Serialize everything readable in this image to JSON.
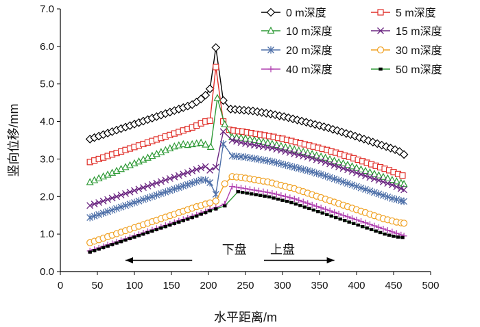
{
  "chart_data": {
    "type": "line",
    "xlabel": "水平距离/m",
    "ylabel": "竖向位移/mm",
    "xlim": [
      0,
      500
    ],
    "ylim": [
      0.0,
      7.0
    ],
    "xticks": [
      0,
      50,
      100,
      150,
      200,
      250,
      300,
      350,
      400,
      450,
      500
    ],
    "xtick_labels": [
      "0",
      "50",
      "100",
      "150",
      "200",
      "250",
      "300",
      "350",
      "400",
      "450",
      "500"
    ],
    "yticks": [
      0,
      1,
      2,
      3,
      4,
      5,
      6,
      7
    ],
    "ytick_labels": [
      "0.0",
      "1.0",
      "2.0",
      "3.0",
      "4.0",
      "5.0",
      "6.0",
      "7.0"
    ],
    "grid": false,
    "legend_position": "top-right",
    "annotations": [
      {
        "text": "下盘",
        "direction": "left",
        "x_from": 178,
        "x_to": 88,
        "y": 0.3,
        "text_x": 235,
        "text_y": 0.58
      },
      {
        "text": "上盘",
        "direction": "right",
        "x_from": 275,
        "x_to": 370,
        "y": 0.3,
        "text_x": 300,
        "text_y": 0.58
      }
    ],
    "series": [
      {
        "name": "0 m深度",
        "color": "#000000",
        "marker": "diamond",
        "x": [
          40,
          46,
          52,
          58,
          64,
          70,
          76,
          82,
          88,
          94,
          100,
          106,
          112,
          118,
          124,
          130,
          136,
          142,
          148,
          154,
          160,
          166,
          172,
          178,
          184,
          190,
          196,
          202,
          210,
          220,
          230,
          236,
          242,
          248,
          254,
          260,
          266,
          272,
          278,
          284,
          290,
          296,
          302,
          308,
          314,
          320,
          326,
          332,
          338,
          344,
          350,
          356,
          362,
          368,
          374,
          380,
          386,
          392,
          398,
          404,
          410,
          416,
          422,
          428,
          434,
          440,
          446,
          452,
          458,
          464
        ],
        "y": [
          3.53,
          3.57,
          3.61,
          3.65,
          3.69,
          3.73,
          3.77,
          3.81,
          3.85,
          3.89,
          3.93,
          3.97,
          4.01,
          4.05,
          4.09,
          4.13,
          4.17,
          4.21,
          4.25,
          4.29,
          4.33,
          4.37,
          4.41,
          4.45,
          4.52,
          4.6,
          4.7,
          4.87,
          5.97,
          4.56,
          4.33,
          4.32,
          4.31,
          4.3,
          4.29,
          4.28,
          4.26,
          4.24,
          4.22,
          4.2,
          4.18,
          4.15,
          4.13,
          4.1,
          4.07,
          4.04,
          4.01,
          3.98,
          3.95,
          3.92,
          3.89,
          3.86,
          3.83,
          3.79,
          3.76,
          3.72,
          3.68,
          3.65,
          3.61,
          3.57,
          3.53,
          3.49,
          3.45,
          3.41,
          3.37,
          3.33,
          3.29,
          3.25,
          3.2,
          3.12
        ]
      },
      {
        "name": "5 m深度",
        "color": "#e0302a",
        "marker": "square",
        "x": [
          40,
          46,
          52,
          58,
          64,
          70,
          76,
          82,
          88,
          94,
          100,
          106,
          112,
          118,
          124,
          130,
          136,
          142,
          148,
          154,
          160,
          166,
          172,
          178,
          184,
          190,
          196,
          202,
          210,
          220,
          228,
          234,
          240,
          246,
          252,
          258,
          264,
          270,
          276,
          282,
          288,
          294,
          300,
          306,
          312,
          318,
          324,
          330,
          336,
          342,
          348,
          354,
          360,
          366,
          372,
          378,
          384,
          390,
          396,
          402,
          408,
          414,
          420,
          426,
          432,
          438,
          444,
          450,
          456,
          462
        ],
        "y": [
          2.92,
          2.96,
          3.0,
          3.04,
          3.08,
          3.12,
          3.16,
          3.2,
          3.24,
          3.28,
          3.32,
          3.36,
          3.4,
          3.44,
          3.48,
          3.52,
          3.56,
          3.6,
          3.64,
          3.68,
          3.72,
          3.76,
          3.8,
          3.84,
          3.89,
          3.95,
          4.0,
          4.02,
          5.45,
          4.0,
          3.78,
          3.76,
          3.74,
          3.73,
          3.71,
          3.69,
          3.67,
          3.65,
          3.63,
          3.61,
          3.59,
          3.56,
          3.54,
          3.51,
          3.48,
          3.45,
          3.42,
          3.39,
          3.36,
          3.33,
          3.3,
          3.27,
          3.24,
          3.2,
          3.17,
          3.13,
          3.09,
          3.06,
          3.02,
          2.98,
          2.94,
          2.9,
          2.86,
          2.82,
          2.78,
          2.74,
          2.7,
          2.65,
          2.6,
          2.56
        ]
      },
      {
        "name": "10 m深度",
        "color": "#2e9a36",
        "marker": "triangle",
        "x": [
          40,
          46,
          52,
          58,
          64,
          70,
          76,
          82,
          88,
          94,
          100,
          106,
          112,
          118,
          124,
          130,
          136,
          142,
          148,
          154,
          160,
          166,
          172,
          178,
          184,
          190,
          196,
          203,
          212,
          222,
          232,
          238,
          244,
          250,
          256,
          262,
          268,
          274,
          280,
          286,
          292,
          298,
          304,
          310,
          316,
          322,
          328,
          334,
          340,
          346,
          352,
          358,
          364,
          370,
          376,
          382,
          388,
          394,
          400,
          406,
          412,
          418,
          424,
          430,
          436,
          442,
          448,
          454,
          460,
          464
        ],
        "y": [
          2.38,
          2.43,
          2.48,
          2.53,
          2.58,
          2.63,
          2.68,
          2.73,
          2.78,
          2.83,
          2.88,
          2.93,
          2.98,
          3.03,
          3.08,
          3.13,
          3.18,
          3.23,
          3.28,
          3.33,
          3.36,
          3.39,
          3.37,
          3.39,
          3.41,
          3.43,
          3.38,
          3.32,
          4.62,
          3.92,
          3.58,
          3.57,
          3.56,
          3.54,
          3.52,
          3.5,
          3.48,
          3.45,
          3.43,
          3.4,
          3.37,
          3.34,
          3.31,
          3.28,
          3.25,
          3.22,
          3.19,
          3.16,
          3.13,
          3.09,
          3.06,
          3.03,
          2.99,
          2.95,
          2.91,
          2.88,
          2.84,
          2.8,
          2.76,
          2.72,
          2.68,
          2.64,
          2.6,
          2.56,
          2.52,
          2.48,
          2.44,
          2.4,
          2.36,
          2.33
        ]
      },
      {
        "name": "15 m深度",
        "color": "#6a2580",
        "marker": "x",
        "x": [
          40,
          46,
          52,
          58,
          64,
          70,
          76,
          82,
          88,
          94,
          100,
          106,
          112,
          118,
          124,
          130,
          136,
          142,
          148,
          154,
          160,
          166,
          172,
          178,
          184,
          190,
          196,
          202,
          210,
          220,
          232,
          238,
          244,
          250,
          256,
          262,
          268,
          274,
          280,
          286,
          292,
          298,
          304,
          310,
          316,
          322,
          328,
          334,
          340,
          346,
          352,
          358,
          364,
          370,
          376,
          382,
          388,
          394,
          400,
          406,
          412,
          418,
          424,
          430,
          436,
          442,
          448,
          454,
          460,
          464
        ],
        "y": [
          1.76,
          1.8,
          1.84,
          1.88,
          1.92,
          1.96,
          2.0,
          2.04,
          2.08,
          2.12,
          2.16,
          2.2,
          2.24,
          2.28,
          2.32,
          2.36,
          2.4,
          2.44,
          2.48,
          2.52,
          2.56,
          2.6,
          2.64,
          2.68,
          2.72,
          2.76,
          2.8,
          2.7,
          2.78,
          3.73,
          3.5,
          3.47,
          3.44,
          3.41,
          3.39,
          3.37,
          3.35,
          3.33,
          3.31,
          3.29,
          3.26,
          3.23,
          3.2,
          3.17,
          3.14,
          3.11,
          3.08,
          3.05,
          3.02,
          2.98,
          2.95,
          2.91,
          2.87,
          2.83,
          2.79,
          2.75,
          2.71,
          2.67,
          2.63,
          2.59,
          2.55,
          2.51,
          2.47,
          2.43,
          2.39,
          2.35,
          2.31,
          2.26,
          2.21,
          2.18
        ]
      },
      {
        "name": "20 m深度",
        "color": "#4d6fa8",
        "marker": "asterisk",
        "x": [
          40,
          46,
          52,
          58,
          64,
          70,
          76,
          82,
          88,
          94,
          100,
          106,
          112,
          118,
          124,
          130,
          136,
          142,
          148,
          154,
          160,
          166,
          172,
          178,
          184,
          190,
          196,
          202,
          210,
          220,
          232,
          238,
          244,
          250,
          256,
          262,
          268,
          274,
          280,
          286,
          292,
          298,
          304,
          310,
          316,
          322,
          328,
          334,
          340,
          346,
          352,
          358,
          364,
          370,
          376,
          382,
          388,
          394,
          400,
          406,
          412,
          418,
          424,
          430,
          436,
          442,
          448,
          454,
          460,
          464
        ],
        "y": [
          1.44,
          1.48,
          1.52,
          1.56,
          1.6,
          1.64,
          1.68,
          1.72,
          1.76,
          1.8,
          1.84,
          1.88,
          1.92,
          1.96,
          2.0,
          2.04,
          2.08,
          2.12,
          2.16,
          2.2,
          2.24,
          2.28,
          2.32,
          2.36,
          2.4,
          2.44,
          2.44,
          2.37,
          2.06,
          3.4,
          3.08,
          3.07,
          3.06,
          3.05,
          3.03,
          3.01,
          2.99,
          2.97,
          2.95,
          2.93,
          2.9,
          2.87,
          2.84,
          2.81,
          2.78,
          2.75,
          2.72,
          2.69,
          2.66,
          2.62,
          2.59,
          2.55,
          2.51,
          2.47,
          2.43,
          2.39,
          2.35,
          2.31,
          2.27,
          2.23,
          2.19,
          2.15,
          2.11,
          2.07,
          2.03,
          1.99,
          1.95,
          1.92,
          1.89,
          1.87
        ]
      },
      {
        "name": "30 m深度",
        "color": "#f0a020",
        "marker": "circle",
        "x": [
          40,
          46,
          52,
          58,
          64,
          70,
          76,
          82,
          88,
          94,
          100,
          106,
          112,
          118,
          124,
          130,
          136,
          142,
          148,
          154,
          160,
          166,
          172,
          178,
          184,
          190,
          196,
          202,
          210,
          222,
          232,
          238,
          244,
          250,
          256,
          262,
          268,
          274,
          280,
          286,
          292,
          298,
          304,
          310,
          316,
          322,
          328,
          334,
          340,
          346,
          352,
          358,
          364,
          370,
          376,
          382,
          388,
          394,
          400,
          406,
          412,
          418,
          424,
          430,
          436,
          442,
          448,
          454,
          460,
          464
        ],
        "y": [
          0.77,
          0.81,
          0.85,
          0.89,
          0.93,
          0.97,
          1.01,
          1.05,
          1.09,
          1.13,
          1.17,
          1.21,
          1.25,
          1.29,
          1.33,
          1.37,
          1.41,
          1.45,
          1.49,
          1.53,
          1.57,
          1.61,
          1.65,
          1.69,
          1.73,
          1.76,
          1.8,
          1.83,
          1.88,
          2.34,
          2.53,
          2.52,
          2.51,
          2.49,
          2.47,
          2.45,
          2.43,
          2.41,
          2.39,
          2.36,
          2.33,
          2.3,
          2.27,
          2.24,
          2.21,
          2.17,
          2.13,
          2.09,
          2.05,
          2.01,
          1.97,
          1.93,
          1.89,
          1.85,
          1.81,
          1.77,
          1.73,
          1.69,
          1.65,
          1.61,
          1.57,
          1.53,
          1.49,
          1.45,
          1.41,
          1.38,
          1.35,
          1.32,
          1.3,
          1.29
        ]
      },
      {
        "name": "40 m深度",
        "color": "#b040b0",
        "marker": "plus",
        "x": [
          40,
          46,
          52,
          58,
          64,
          70,
          76,
          82,
          88,
          94,
          100,
          106,
          112,
          118,
          124,
          130,
          136,
          142,
          148,
          154,
          160,
          166,
          172,
          178,
          184,
          190,
          196,
          202,
          210,
          222,
          232,
          238,
          244,
          250,
          256,
          262,
          268,
          274,
          280,
          286,
          292,
          298,
          304,
          310,
          316,
          322,
          328,
          334,
          340,
          346,
          352,
          358,
          364,
          370,
          376,
          382,
          388,
          394,
          400,
          406,
          412,
          418,
          424,
          430,
          436,
          442,
          448,
          454,
          460,
          464
        ],
        "y": [
          0.55,
          0.59,
          0.63,
          0.67,
          0.71,
          0.75,
          0.79,
          0.83,
          0.87,
          0.91,
          0.95,
          0.99,
          1.03,
          1.07,
          1.11,
          1.15,
          1.19,
          1.23,
          1.27,
          1.31,
          1.35,
          1.39,
          1.43,
          1.47,
          1.51,
          1.56,
          1.6,
          1.66,
          1.7,
          1.8,
          2.27,
          2.25,
          2.23,
          2.21,
          2.19,
          2.17,
          2.15,
          2.13,
          2.11,
          2.09,
          2.06,
          2.03,
          2.0,
          1.97,
          1.94,
          1.9,
          1.86,
          1.82,
          1.78,
          1.74,
          1.7,
          1.66,
          1.62,
          1.58,
          1.54,
          1.5,
          1.46,
          1.42,
          1.38,
          1.34,
          1.3,
          1.26,
          1.22,
          1.18,
          1.14,
          1.1,
          1.06,
          1.02,
          0.98,
          0.95
        ]
      },
      {
        "name": "50 m深度",
        "color": "#2e9a36",
        "marker": "smallsquare",
        "x": [
          40,
          46,
          52,
          58,
          64,
          70,
          76,
          82,
          88,
          94,
          100,
          106,
          112,
          118,
          124,
          130,
          136,
          142,
          148,
          154,
          160,
          166,
          172,
          178,
          184,
          190,
          196,
          202,
          210,
          222,
          240,
          246,
          252,
          258,
          264,
          270,
          276,
          282,
          288,
          294,
          300,
          306,
          312,
          318,
          324,
          330,
          336,
          342,
          348,
          354,
          360,
          366,
          372,
          378,
          384,
          390,
          396,
          402,
          408,
          414,
          420,
          426,
          432,
          438,
          444,
          450,
          456,
          462
        ],
        "y": [
          0.52,
          0.56,
          0.6,
          0.64,
          0.68,
          0.72,
          0.76,
          0.8,
          0.84,
          0.88,
          0.92,
          0.96,
          1.0,
          1.04,
          1.08,
          1.12,
          1.16,
          1.2,
          1.24,
          1.28,
          1.32,
          1.36,
          1.4,
          1.44,
          1.48,
          1.53,
          1.57,
          1.62,
          1.67,
          1.75,
          2.13,
          2.11,
          2.09,
          2.07,
          2.05,
          2.03,
          2.01,
          1.99,
          1.96,
          1.93,
          1.9,
          1.87,
          1.84,
          1.8,
          1.76,
          1.72,
          1.68,
          1.64,
          1.6,
          1.56,
          1.52,
          1.48,
          1.44,
          1.4,
          1.36,
          1.32,
          1.28,
          1.24,
          1.2,
          1.16,
          1.12,
          1.08,
          1.04,
          1.0,
          0.97,
          0.94,
          0.92,
          0.91
        ]
      }
    ]
  }
}
